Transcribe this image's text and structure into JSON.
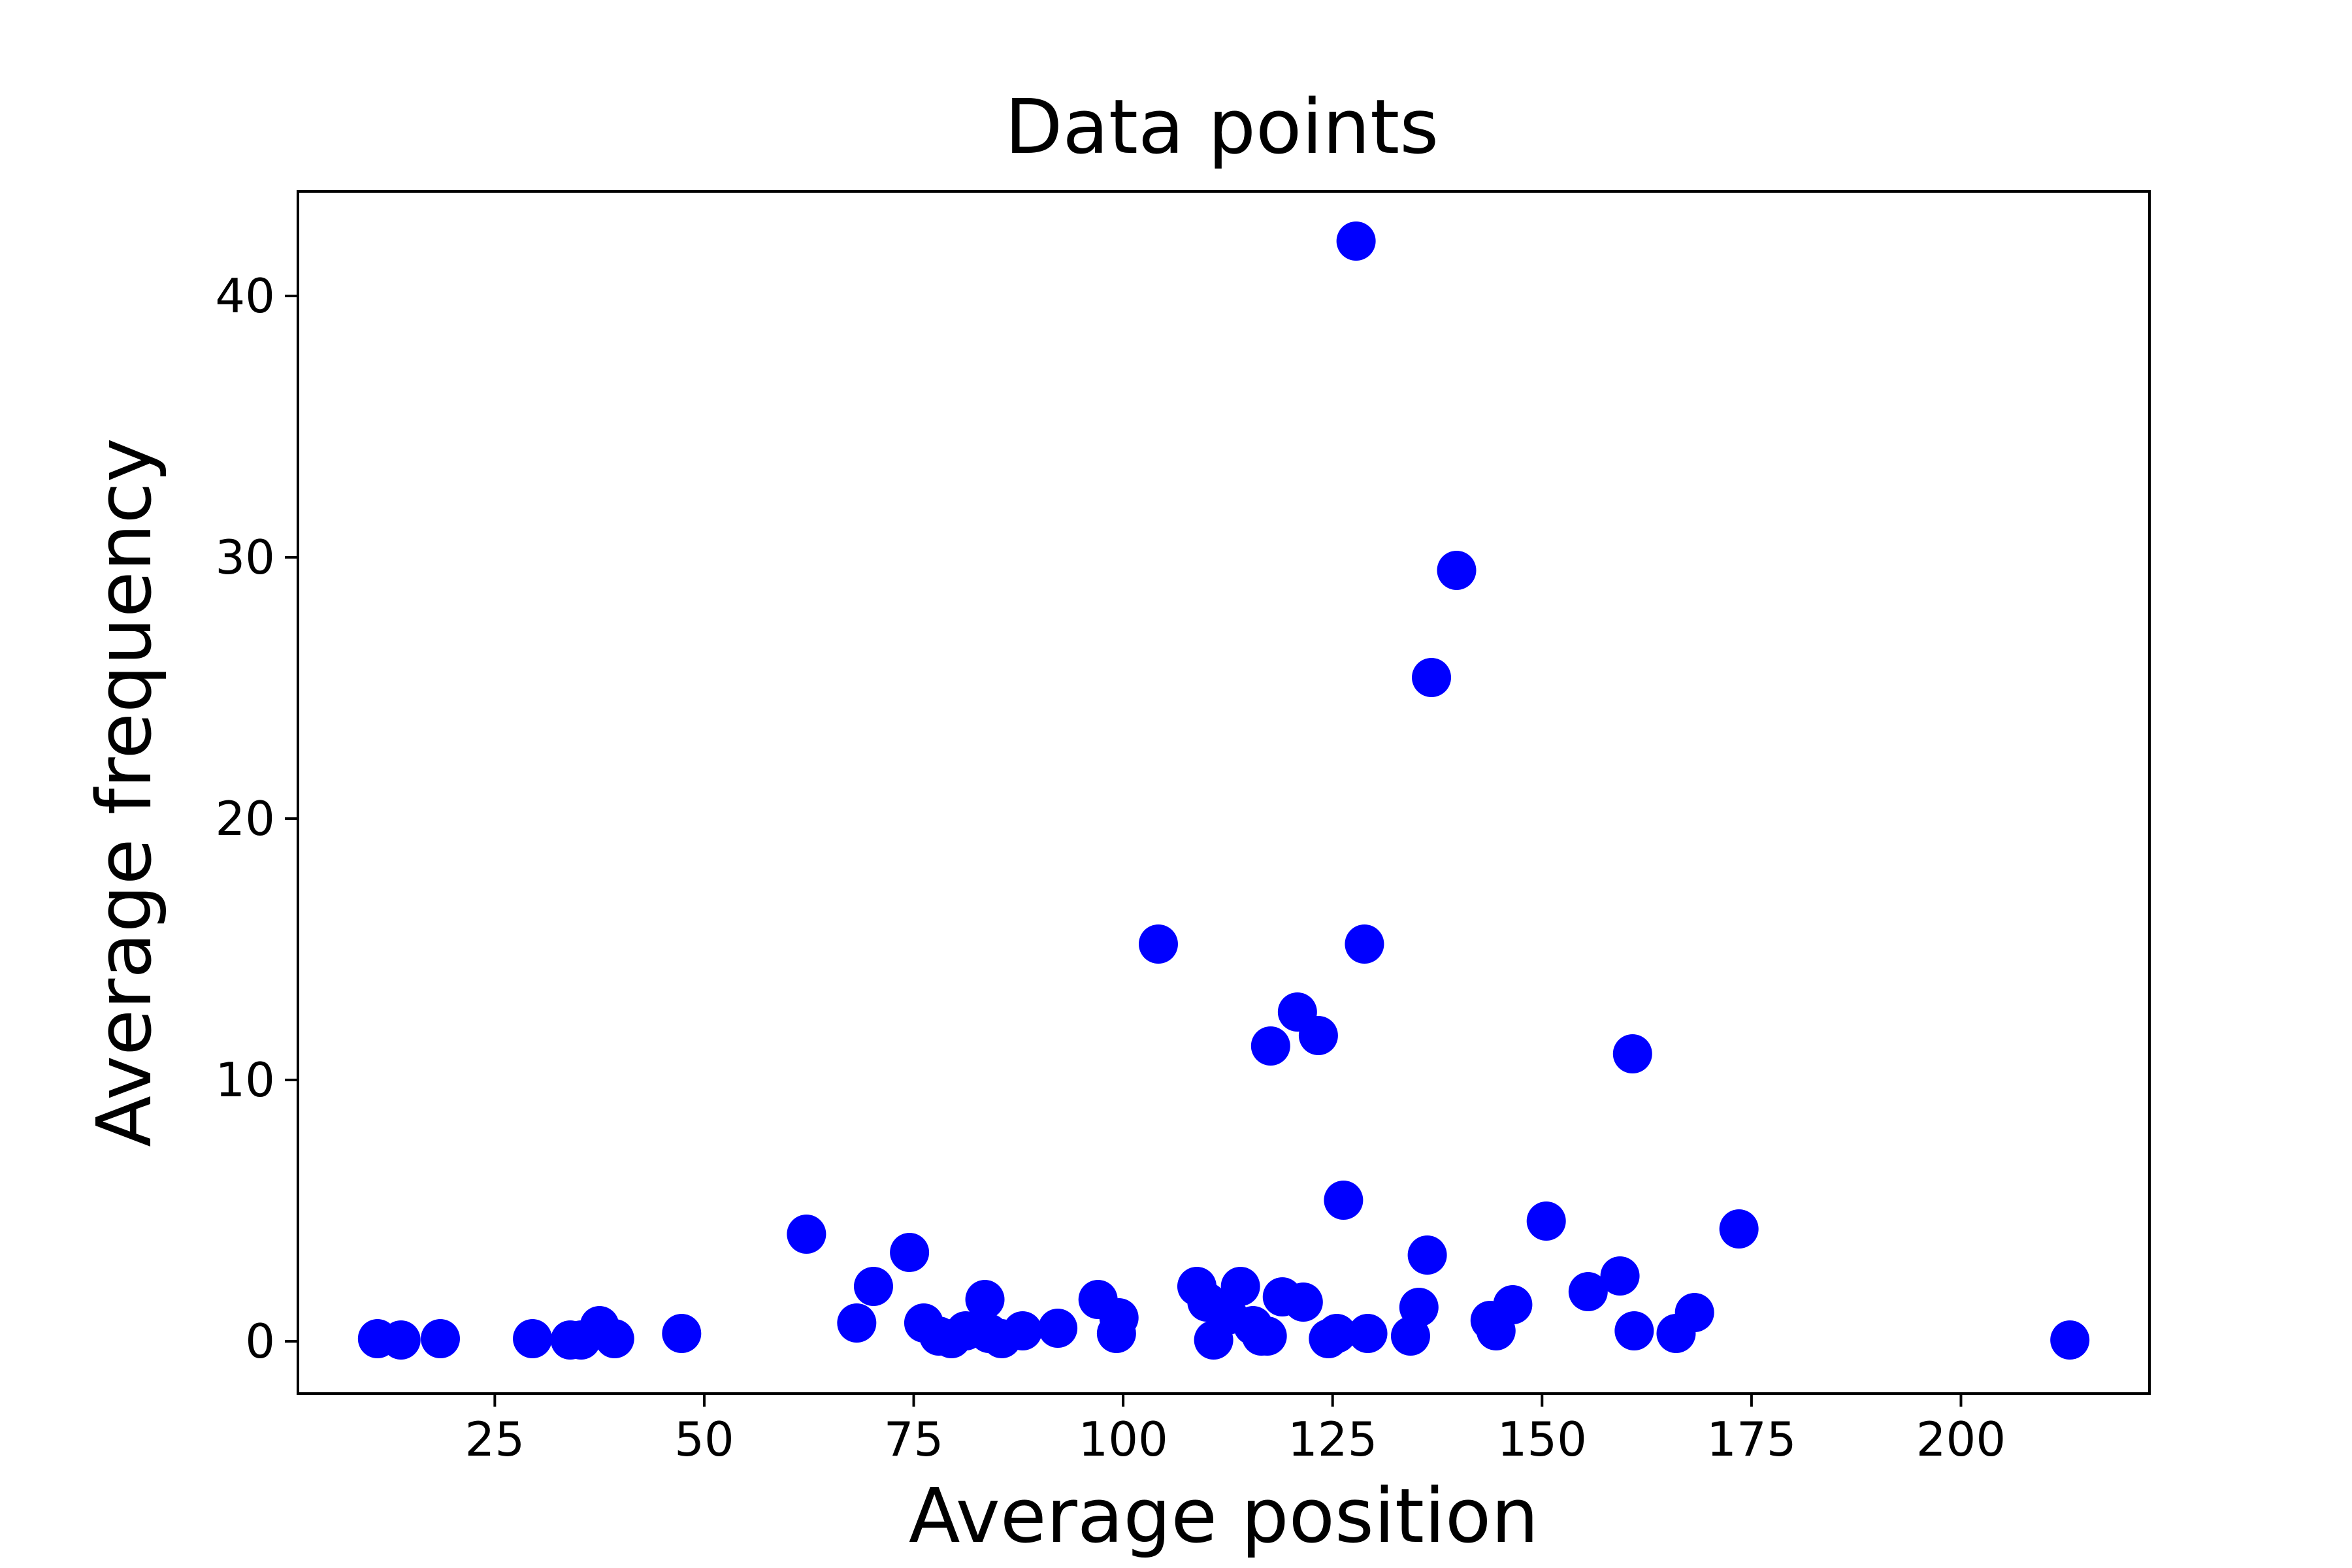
{
  "chart_data": {
    "type": "scatter",
    "title": "Data points",
    "xlabel": "Average position",
    "ylabel": "Average frequency",
    "xlim": [
      1.5,
      222.5
    ],
    "ylim": [
      -2,
      44
    ],
    "xticks": [
      25,
      50,
      75,
      100,
      125,
      150,
      175,
      200
    ],
    "yticks": [
      0,
      10,
      20,
      30,
      40
    ],
    "grid": false,
    "marker_color": "#0000ff",
    "points": [
      [
        11,
        0.1
      ],
      [
        13.8,
        0.05
      ],
      [
        18.5,
        0.1
      ],
      [
        29.5,
        0.1
      ],
      [
        34,
        0.05
      ],
      [
        35.3,
        0.05
      ],
      [
        37.5,
        0.6
      ],
      [
        39.3,
        0.1
      ],
      [
        47.3,
        0.3
      ],
      [
        62.2,
        4.1
      ],
      [
        68.2,
        0.7
      ],
      [
        70.2,
        2.1
      ],
      [
        74.5,
        3.4
      ],
      [
        76.2,
        0.7
      ],
      [
        78,
        0.2
      ],
      [
        79.5,
        0.1
      ],
      [
        81.2,
        0.4
      ],
      [
        83.5,
        1.6
      ],
      [
        84,
        0.3
      ],
      [
        85.5,
        0.1
      ],
      [
        88,
        0.4
      ],
      [
        92.2,
        0.5
      ],
      [
        97,
        1.6
      ],
      [
        99.2,
        0.3
      ],
      [
        99.5,
        0.9
      ],
      [
        104.2,
        15.2
      ],
      [
        108.8,
        2.1
      ],
      [
        110,
        1.5
      ],
      [
        110.8,
        0.05
      ],
      [
        112.5,
        1.0
      ],
      [
        114,
        2.1
      ],
      [
        115.5,
        0.6
      ],
      [
        116.5,
        0.2
      ],
      [
        117.2,
        0.2
      ],
      [
        117.6,
        11.3
      ],
      [
        119,
        1.7
      ],
      [
        120.8,
        12.6
      ],
      [
        121.5,
        1.5
      ],
      [
        123.3,
        11.7
      ],
      [
        124.5,
        0.1
      ],
      [
        125.5,
        0.3
      ],
      [
        126.3,
        5.4
      ],
      [
        127.8,
        42.1
      ],
      [
        128.8,
        15.2
      ],
      [
        129.2,
        0.3
      ],
      [
        134.3,
        0.2
      ],
      [
        135.3,
        1.3
      ],
      [
        136.3,
        3.3
      ],
      [
        136.8,
        25.4
      ],
      [
        139.8,
        29.5
      ],
      [
        143.8,
        0.8
      ],
      [
        144.5,
        0.4
      ],
      [
        146.5,
        1.4
      ],
      [
        150.5,
        4.6
      ],
      [
        155.5,
        1.9
      ],
      [
        159.3,
        2.5
      ],
      [
        160.8,
        11.0
      ],
      [
        161,
        0.4
      ],
      [
        166,
        0.3
      ],
      [
        168.2,
        1.1
      ],
      [
        173.5,
        4.3
      ],
      [
        213,
        0.05
      ]
    ]
  }
}
